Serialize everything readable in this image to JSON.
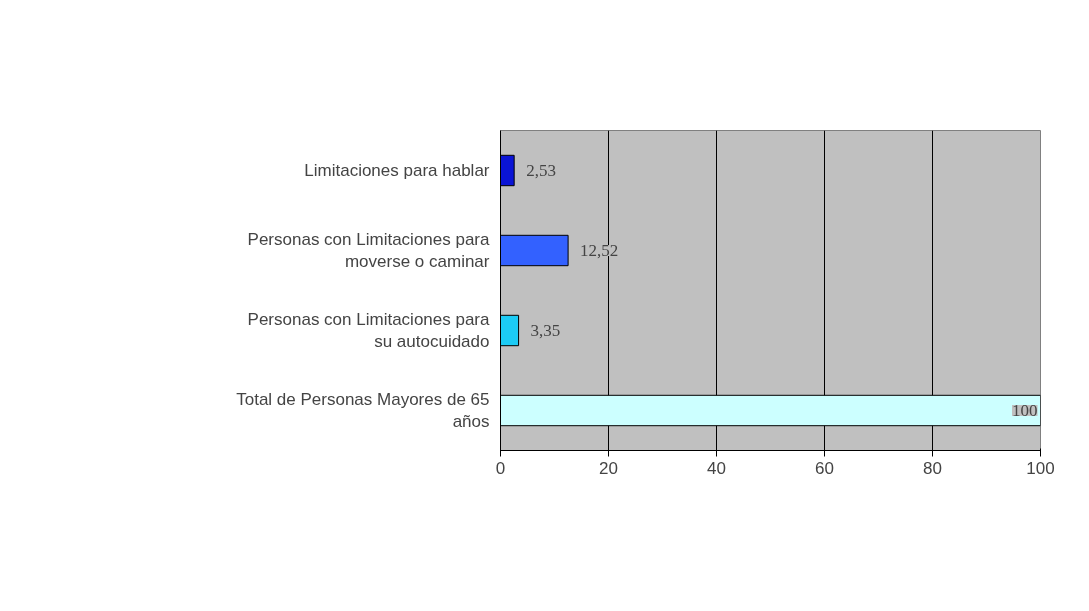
{
  "chart_data": {
    "type": "bar",
    "orientation": "horizontal",
    "categories": [
      "Limitaciones para hablar",
      "Personas con Limitaciones para moverse o caminar",
      "Personas con Limitaciones para su autocuidado",
      "Total de Personas Mayores de 65 años"
    ],
    "values": [
      2.53,
      12.52,
      3.35,
      100
    ],
    "colors": [
      "#0a14d6",
      "#3361ff",
      "#1ccbf5",
      "#ccffff"
    ],
    "value_labels": [
      "2,53",
      "12,52",
      "3,35",
      "100"
    ],
    "xlim": [
      0,
      100
    ],
    "xticks": [
      0,
      20,
      40,
      60,
      80,
      100
    ],
    "grid": "x"
  }
}
